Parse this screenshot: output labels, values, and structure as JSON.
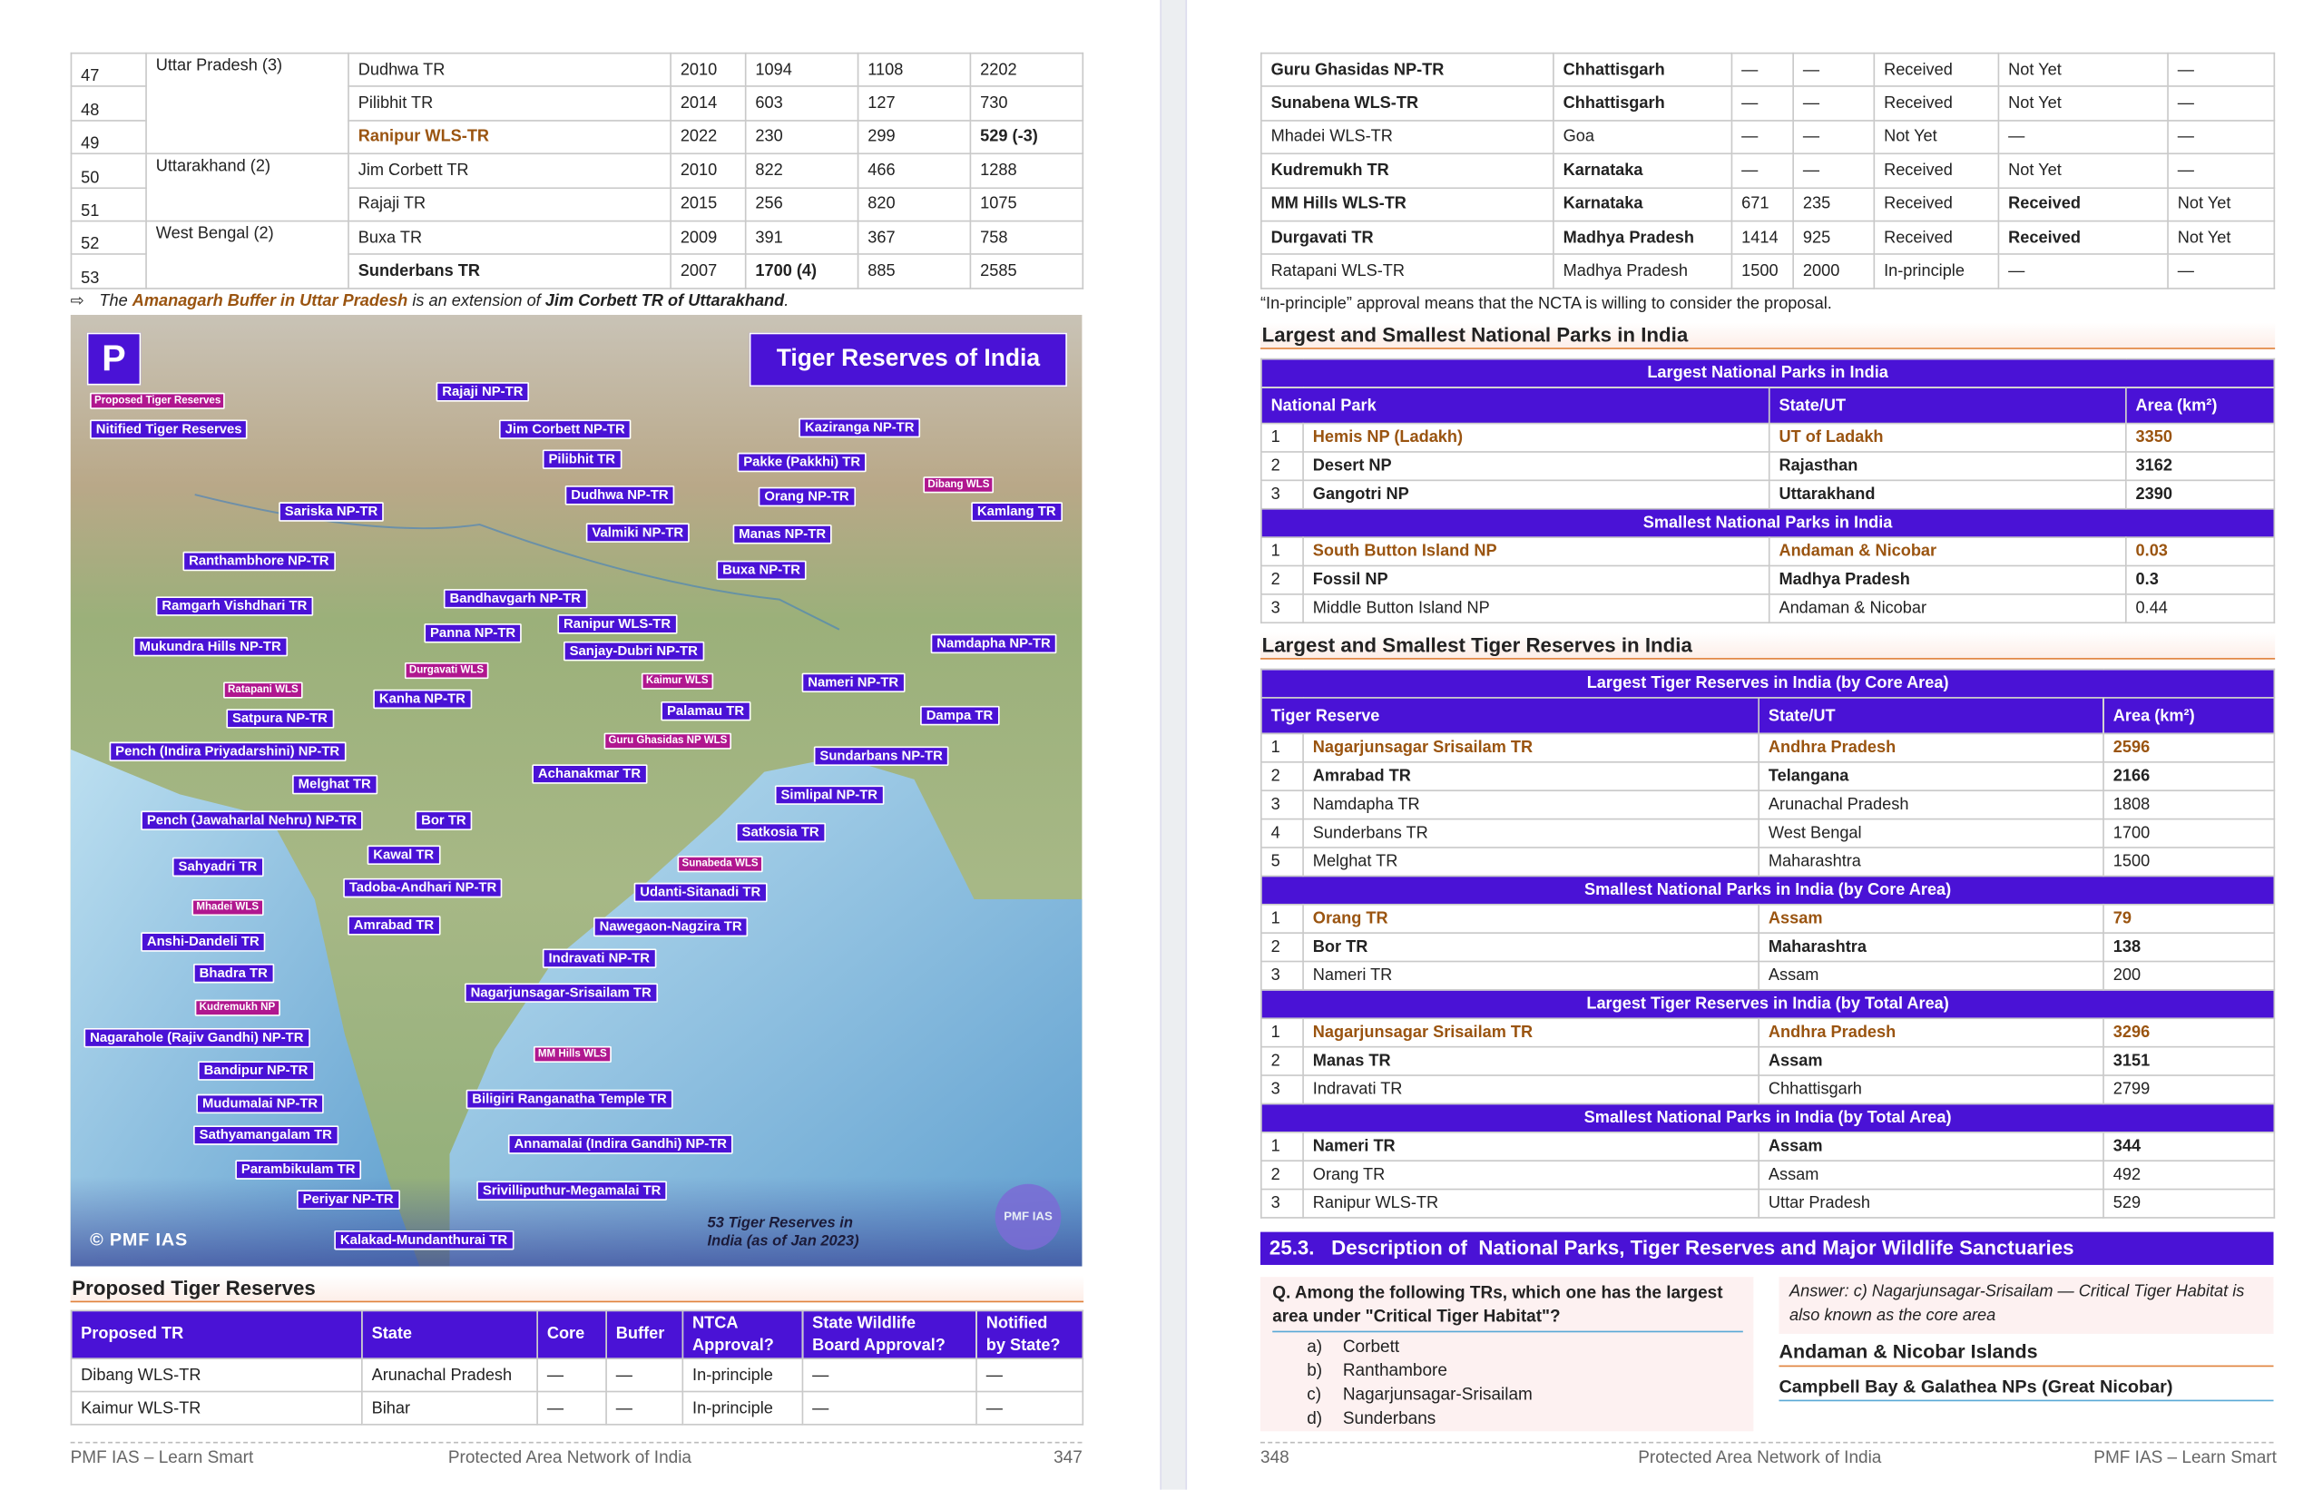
{
  "left_page": {
    "tr_table": {
      "rows": [
        {
          "no": "47",
          "state": "Uttar Pradesh (3)",
          "cells": [
            "Dudhwa TR",
            "2010",
            "1094",
            "1108",
            "2202"
          ]
        },
        {
          "no": "48",
          "cells": [
            "Pilibhit TR",
            "2014",
            "603",
            "127",
            "730"
          ]
        },
        {
          "no": "49",
          "cells": [
            "Ranipur WLS-TR",
            "2022",
            "230",
            "299",
            "529 (-3)"
          ]
        },
        {
          "no": "50",
          "state": "Uttarakhand (2)",
          "cells": [
            "Jim Corbett TR",
            "2010",
            "822",
            "466",
            "1288"
          ]
        },
        {
          "no": "51",
          "cells": [
            "Rajaji TR",
            "2015",
            "256",
            "820",
            "1075"
          ]
        },
        {
          "no": "52",
          "state": "West Bengal (2)",
          "cells": [
            "Buxa TR",
            "2009",
            "391",
            "367",
            "758"
          ]
        },
        {
          "no": "53",
          "cells": [
            "Sunderbans TR",
            "2007",
            "1700 (4)",
            "885",
            "2585"
          ]
        }
      ]
    },
    "note": {
      "parts": [
        "The ",
        "Amanagarh Buffer in Uttar Pradesh",
        " is an extension of ",
        "Jim Corbett TR of Uttarakhand",
        "."
      ]
    },
    "map": {
      "title": "Tiger Reserves of India",
      "legend": [
        {
          "text": "Proposed Tiger Reserves",
          "kind": "proposed"
        },
        {
          "text": "Nitified Tiger Reserves",
          "kind": "notified"
        }
      ],
      "labels": [
        {
          "text": "Rajaji NP-TR",
          "kind": "notified"
        },
        {
          "text": "Jim Corbett NP-TR",
          "kind": "notified"
        },
        {
          "text": "Kaziranga NP-TR",
          "kind": "notified"
        },
        {
          "text": "Pilibhit TR",
          "kind": "notified"
        },
        {
          "text": "Pakke (Pakkhi) TR",
          "kind": "notified"
        },
        {
          "text": "Dibang WLS",
          "kind": "proposed"
        },
        {
          "text": "Dudhwa NP-TR",
          "kind": "notified"
        },
        {
          "text": "Orang NP-TR",
          "kind": "notified"
        },
        {
          "text": "Kamlang TR",
          "kind": "notified"
        },
        {
          "text": "Sariska NP-TR",
          "kind": "notified"
        },
        {
          "text": "Valmiki NP-TR",
          "kind": "notified"
        },
        {
          "text": "Manas NP-TR",
          "kind": "notified"
        },
        {
          "text": "Ranthambhore NP-TR",
          "kind": "notified"
        },
        {
          "text": "Buxa NP-TR",
          "kind": "notified"
        },
        {
          "text": "Bandhavgarh NP-TR",
          "kind": "notified"
        },
        {
          "text": "Ramgarh Vishdhari TR",
          "kind": "notified"
        },
        {
          "text": "Ranipur WLS-TR",
          "kind": "notified"
        },
        {
          "text": "Panna NP-TR",
          "kind": "notified"
        },
        {
          "text": "Mukundra Hills NP-TR",
          "kind": "notified"
        },
        {
          "text": "Namdapha NP-TR",
          "kind": "notified"
        },
        {
          "text": "Sanjay-Dubri NP-TR",
          "kind": "notified"
        },
        {
          "text": "Durgavati WLS",
          "kind": "proposed"
        },
        {
          "text": "Kaimur WLS",
          "kind": "proposed"
        },
        {
          "text": "Nameri NP-TR",
          "kind": "notified"
        },
        {
          "text": "Ratapani WLS",
          "kind": "proposed"
        },
        {
          "text": "Kanha NP-TR",
          "kind": "notified"
        },
        {
          "text": "Palamau TR",
          "kind": "notified"
        },
        {
          "text": "Dampa TR",
          "kind": "notified"
        },
        {
          "text": "Satpura NP-TR",
          "kind": "notified"
        },
        {
          "text": "Guru Ghasidas NP WLS",
          "kind": "proposed"
        },
        {
          "text": "Pench (Indira Priyadarshini) NP-TR",
          "kind": "notified"
        },
        {
          "text": "Sundarbans NP-TR",
          "kind": "notified"
        },
        {
          "text": "Achanakmar TR",
          "kind": "notified"
        },
        {
          "text": "Melghat TR",
          "kind": "notified"
        },
        {
          "text": "Simlipal NP-TR",
          "kind": "notified"
        },
        {
          "text": "Pench (Jawaharlal Nehru) NP-TR",
          "kind": "notified"
        },
        {
          "text": "Bor TR",
          "kind": "notified"
        },
        {
          "text": "Satkosia TR",
          "kind": "notified"
        },
        {
          "text": "Kawal TR",
          "kind": "notified"
        },
        {
          "text": "Sunabeda WLS",
          "kind": "proposed"
        },
        {
          "text": "Sahyadri TR",
          "kind": "notified"
        },
        {
          "text": "Tadoba-Andhari NP-TR",
          "kind": "notified"
        },
        {
          "text": "Udanti-Sitanadi TR",
          "kind": "notified"
        },
        {
          "text": "Mhadei WLS",
          "kind": "proposed"
        },
        {
          "text": "Amrabad TR",
          "kind": "notified"
        },
        {
          "text": "Nawegaon-Nagzira TR",
          "kind": "notified"
        },
        {
          "text": "Anshi-Dandeli TR",
          "kind": "notified"
        },
        {
          "text": "Indravati NP-TR",
          "kind": "notified"
        },
        {
          "text": "Bhadra TR",
          "kind": "notified"
        },
        {
          "text": "Nagarjunsagar-Srisailam TR",
          "kind": "notified"
        },
        {
          "text": "Kudremukh NP",
          "kind": "proposed"
        },
        {
          "text": "Nagarahole (Rajiv Gandhi) NP-TR",
          "kind": "notified"
        },
        {
          "text": "MM Hills WLS",
          "kind": "proposed"
        },
        {
          "text": "Bandipur NP-TR",
          "kind": "notified"
        },
        {
          "text": "Biligiri Ranganatha Temple TR",
          "kind": "notified"
        },
        {
          "text": "Mudumalai NP-TR",
          "kind": "notified"
        },
        {
          "text": "Sathyamangalam TR",
          "kind": "notified"
        },
        {
          "text": "Annamalai (Indira Gandhi) NP-TR",
          "kind": "notified"
        },
        {
          "text": "Parambikulam TR",
          "kind": "notified"
        },
        {
          "text": "Srivilliputhur-Megamalai TR",
          "kind": "notified"
        },
        {
          "text": "Periyar NP-TR",
          "kind": "notified"
        },
        {
          "text": "Kalakad-Mundanthurai TR",
          "kind": "notified"
        }
      ],
      "caption": [
        "53 Tiger Reserves in",
        "India (as of Jan 2023)"
      ],
      "copyright": "© PMF IAS",
      "logo": "PMF IAS"
    },
    "proposed": {
      "heading": "Proposed Tiger Reserves",
      "columns": [
        [
          "Proposed TR"
        ],
        [
          "State"
        ],
        [
          "Core"
        ],
        [
          "Buffer"
        ],
        [
          "NTCA",
          "Approval?"
        ],
        [
          "State Wildlife",
          "Board Approval?"
        ],
        [
          "Notified",
          "by State?"
        ]
      ],
      "rows": [
        [
          "Dibang WLS-TR",
          "Arunachal Pradesh",
          "—",
          "—",
          "In-principle",
          "—",
          "—"
        ],
        [
          "Kaimur WLS-TR",
          "Bihar",
          "—",
          "—",
          "In-principle",
          "—",
          "—"
        ]
      ]
    },
    "footer": [
      "PMF IAS – Learn Smart",
      "Protected Area Network of India",
      "347"
    ]
  },
  "right_page": {
    "proposed_rows": [
      [
        "Guru Ghasidas NP-TR",
        "Chhattisgarh",
        "—",
        "—",
        "Received",
        "Not Yet",
        "—"
      ],
      [
        "Sunabena WLS-TR",
        "Chhattisgarh",
        "—",
        "—",
        "Received",
        "Not Yet",
        "—"
      ],
      [
        "Mhadei WLS-TR",
        "Goa",
        "—",
        "—",
        "Not Yet",
        "—",
        "—"
      ],
      [
        "Kudremukh TR",
        "Karnataka",
        "—",
        "—",
        "Received",
        "Not Yet",
        "—"
      ],
      [
        "MM Hills WLS-TR",
        "Karnataka",
        "671",
        "235",
        "Received",
        "Received",
        "Not Yet"
      ],
      [
        "Durgavati TR",
        "Madhya Pradesh",
        "1414",
        "925",
        "Received",
        "Received",
        "Not Yet"
      ],
      [
        "Ratapani WLS-TR",
        "Madhya Pradesh",
        "1500",
        "2000",
        "In-principle",
        "—",
        "—"
      ]
    ],
    "note": "“In-principle” approval means that the NCTA is willing to consider the proposal.",
    "np_section": {
      "heading": "Largest and Smallest National Parks in India",
      "columns": [
        "National Park",
        "State/UT",
        "Area (km²)"
      ],
      "groups": [
        {
          "title": "Largest National Parks in India",
          "rows": [
            {
              "rank": "1",
              "cells": [
                "Hemis NP (Ladakh)",
                "UT of Ladakh",
                "3350"
              ],
              "style": "highlight"
            },
            {
              "rank": "2",
              "cells": [
                "Desert NP",
                "Rajasthan",
                "3162"
              ],
              "style": "bold"
            },
            {
              "rank": "3",
              "cells": [
                "Gangotri NP",
                "Uttarakhand",
                "2390"
              ],
              "style": "bold"
            }
          ]
        },
        {
          "title": "Smallest National Parks in India",
          "rows": [
            {
              "rank": "1",
              "cells": [
                "South Button Island NP",
                "Andaman & Nicobar",
                "0.03"
              ],
              "style": "highlight"
            },
            {
              "rank": "2",
              "cells": [
                "Fossil NP",
                "Madhya Pradesh",
                "0.3"
              ],
              "style": "bold"
            },
            {
              "rank": "3",
              "cells": [
                "Middle Button Island NP",
                "Andaman & Nicobar",
                "0.44"
              ],
              "style": "normal"
            }
          ]
        }
      ]
    },
    "tr_section": {
      "heading": "Largest and Smallest Tiger Reserves in India",
      "columns": [
        "Tiger Reserve",
        "State/UT",
        "Area (km²)"
      ],
      "groups": [
        {
          "title": "Largest Tiger Reserves in India (by Core Area)",
          "rows": [
            {
              "rank": "1",
              "cells": [
                "Nagarjunsagar Srisailam TR",
                "Andhra Pradesh",
                "2596"
              ],
              "style": "highlight"
            },
            {
              "rank": "2",
              "cells": [
                "Amrabad TR",
                "Telangana",
                "2166"
              ],
              "style": "bold"
            },
            {
              "rank": "3",
              "cells": [
                "Namdapha TR",
                "Arunachal Pradesh",
                "1808"
              ],
              "style": "normal"
            },
            {
              "rank": "4",
              "cells": [
                "Sunderbans TR",
                "West Bengal",
                "1700"
              ],
              "style": "normal"
            },
            {
              "rank": "5",
              "cells": [
                "Melghat TR",
                "Maharashtra",
                "1500"
              ],
              "style": "normal"
            }
          ]
        },
        {
          "title": "Smallest National Parks in India (by Core Area)",
          "rows": [
            {
              "rank": "1",
              "cells": [
                "Orang TR",
                "Assam",
                "79"
              ],
              "style": "highlight"
            },
            {
              "rank": "2",
              "cells": [
                "Bor TR",
                "Maharashtra",
                "138"
              ],
              "style": "bold"
            },
            {
              "rank": "3",
              "cells": [
                "Nameri TR",
                "Assam",
                "200"
              ],
              "style": "normal"
            }
          ]
        },
        {
          "title": "Largest Tiger Reserves in India (by Total Area)",
          "rows": [
            {
              "rank": "1",
              "cells": [
                "Nagarjunsagar Srisailam TR",
                "Andhra Pradesh",
                "3296"
              ],
              "style": "highlight"
            },
            {
              "rank": "2",
              "cells": [
                "Manas TR",
                "Assam",
                "3151"
              ],
              "style": "bold"
            },
            {
              "rank": "3",
              "cells": [
                "Indravati TR",
                "Chhattisgarh",
                "2799"
              ],
              "style": "normal"
            }
          ]
        },
        {
          "title": "Smallest National Parks in India (by Total Area)",
          "rows": [
            {
              "rank": "1",
              "cells": [
                "Nameri TR",
                "Assam",
                "344"
              ],
              "style": "bold"
            },
            {
              "rank": "2",
              "cells": [
                "Orang TR",
                "Assam",
                "492"
              ],
              "style": "normal"
            },
            {
              "rank": "3",
              "cells": [
                "Ranipur WLS-TR",
                "Uttar Pradesh",
                "529"
              ],
              "style": "normal"
            }
          ]
        }
      ]
    },
    "section_title": "25.3.   Description of  National Parks, Tiger Reserves and Major Wildlife Sanctuaries",
    "question": {
      "text": "Q. Among the following TRs, which one has the largest area under \"Critical Tiger Habitat\"?",
      "options": [
        [
          "a)",
          "Corbett"
        ],
        [
          "b)",
          "Ranthambore"
        ],
        [
          "c)",
          "Nagarjunsagar-Srisailam"
        ],
        [
          "d)",
          "Sunderbans"
        ]
      ],
      "answer": "Answer: c) Nagarjunsagar-Srisailam — Critical Tiger Habitat is also known as the core area"
    },
    "subheading": "Andaman & Nicobar Islands",
    "subsubheading": "Campbell Bay & Galathea NPs (Great Nicobar)",
    "footer": [
      "348",
      "Protected Area Network of India",
      "PMF IAS – Learn Smart"
    ]
  }
}
